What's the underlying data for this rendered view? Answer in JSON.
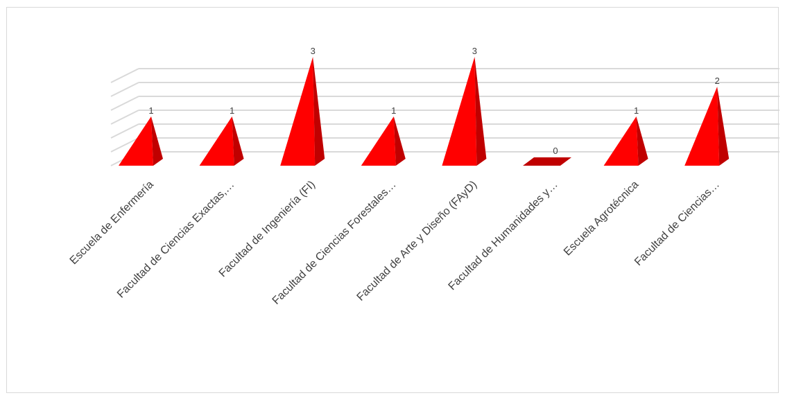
{
  "chart_data": {
    "type": "bar",
    "bar_shape": "pyramid-3d",
    "categories": [
      "Escuela de Enfermería",
      "Facultad de Ciencias Exactas,…",
      "Facultad de Ingeniería (FI)",
      "Facultad de Ciencias Forestales…",
      "Facultad de Arte y Diseño (FAyD)",
      "Facultad de Humanidades y…",
      "Escuela Agrotécnica",
      "Facultad de Ciencias…"
    ],
    "values": [
      1,
      1,
      3,
      1,
      3,
      0,
      1,
      2
    ],
    "data_labels": [
      "1",
      "1",
      "3",
      "1",
      "3",
      "0",
      "1",
      "2"
    ],
    "ylim": [
      0,
      3.5
    ],
    "grid": true,
    "legend": "none",
    "colors": {
      "bar_front": "#ff0000",
      "bar_side": "#c00000",
      "bar_flat": "#c00000",
      "grid": "#d9d9d9",
      "text": "#404040"
    }
  }
}
